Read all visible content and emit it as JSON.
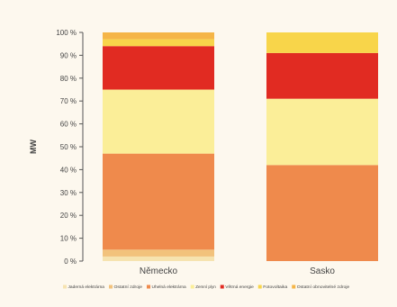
{
  "chart_data": {
    "type": "bar",
    "stacked": true,
    "categories": [
      "Německo",
      "Sasko"
    ],
    "ylabel": "MW",
    "ylim": [
      0,
      100
    ],
    "yticks": [
      "0 %",
      "10 %",
      "20 %",
      "30 %",
      "40 %",
      "50 %",
      "60 %",
      "70 %",
      "80 %",
      "90 %",
      "100 %"
    ],
    "legend_position": "bottom",
    "series": [
      {
        "name": "Jaderná elektrárna",
        "color": "#f6e3b0",
        "values": [
          2,
          0
        ]
      },
      {
        "name": "Ostatní zdroje",
        "color": "#f2c27c",
        "values": [
          3,
          0
        ]
      },
      {
        "name": "Uhelná elektrárna",
        "color": "#ef8a4c",
        "values": [
          42,
          42
        ]
      },
      {
        "name": "Zemní plyn",
        "color": "#fbee98",
        "values": [
          28,
          29
        ]
      },
      {
        "name": "Větrná energie",
        "color": "#e12b22",
        "values": [
          19,
          20
        ]
      },
      {
        "name": "Fotovoltaika",
        "color": "#f8d54a",
        "values": [
          3,
          9
        ]
      },
      {
        "name": "Ostatní obnovitelné zdroje",
        "color": "#f5b547",
        "values": [
          3,
          0
        ]
      }
    ]
  }
}
